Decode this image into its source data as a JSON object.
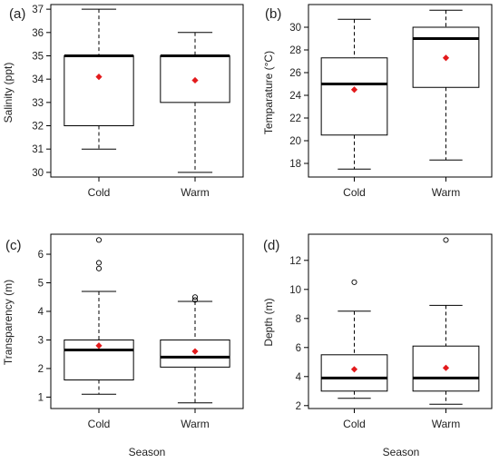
{
  "chart_data": [
    {
      "type": "boxplot",
      "panel": "(a)",
      "ylabel": "Salinity (ppt)",
      "xlabel": "",
      "ylim": [
        29.8,
        37.2
      ],
      "yticks": [
        30,
        31,
        32,
        33,
        34,
        35,
        36,
        37
      ],
      "categories": [
        "Cold",
        "Warm"
      ],
      "boxes": [
        {
          "category": "Cold",
          "whisker_low": 31,
          "q1": 32,
          "median": 35,
          "q3": 35,
          "whisker_high": 37,
          "mean": 34.1,
          "outliers": []
        },
        {
          "category": "Warm",
          "whisker_low": 30,
          "q1": 33,
          "median": 35,
          "q3": 35,
          "whisker_high": 36,
          "mean": 33.95,
          "outliers": []
        }
      ]
    },
    {
      "type": "boxplot",
      "panel": "(b)",
      "ylabel": "Temparature (°C)",
      "xlabel": "",
      "ylim": [
        16.8,
        32.0
      ],
      "yticks": [
        18,
        20,
        22,
        24,
        26,
        28,
        30
      ],
      "categories": [
        "Cold",
        "Warm"
      ],
      "boxes": [
        {
          "category": "Cold",
          "whisker_low": 17.5,
          "q1": 20.5,
          "median": 25.0,
          "q3": 27.3,
          "whisker_high": 30.7,
          "mean": 24.5,
          "outliers": []
        },
        {
          "category": "Warm",
          "whisker_low": 18.3,
          "q1": 24.7,
          "median": 29.0,
          "q3": 30.0,
          "whisker_high": 31.5,
          "mean": 27.3,
          "outliers": []
        }
      ]
    },
    {
      "type": "boxplot",
      "panel": "(c)",
      "ylabel": "Transparency (m)",
      "xlabel": "Season",
      "ylim": [
        0.6,
        6.7
      ],
      "yticks": [
        1,
        2,
        3,
        4,
        5,
        6
      ],
      "categories": [
        "Cold",
        "Warm"
      ],
      "boxes": [
        {
          "category": "Cold",
          "whisker_low": 1.1,
          "q1": 1.6,
          "median": 2.65,
          "q3": 3.0,
          "whisker_high": 4.7,
          "mean": 2.8,
          "outliers": [
            5.5,
            5.7,
            6.5
          ]
        },
        {
          "category": "Warm",
          "whisker_low": 0.8,
          "q1": 2.05,
          "median": 2.4,
          "q3": 3.0,
          "whisker_high": 4.35,
          "mean": 2.6,
          "outliers": [
            4.4,
            4.5
          ]
        }
      ]
    },
    {
      "type": "boxplot",
      "panel": "(d)",
      "ylabel": "Depth (m)",
      "xlabel": "Season",
      "ylim": [
        1.8,
        13.8
      ],
      "yticks": [
        2,
        4,
        6,
        8,
        10,
        12
      ],
      "categories": [
        "Cold",
        "Warm"
      ],
      "boxes": [
        {
          "category": "Cold",
          "whisker_low": 2.5,
          "q1": 3.0,
          "median": 3.9,
          "q3": 5.5,
          "whisker_high": 8.5,
          "mean": 4.5,
          "outliers": [
            10.5
          ]
        },
        {
          "category": "Warm",
          "whisker_low": 2.1,
          "q1": 3.0,
          "median": 3.9,
          "q3": 6.1,
          "whisker_high": 8.9,
          "mean": 4.6,
          "outliers": [
            13.4
          ]
        }
      ]
    }
  ],
  "colors": {
    "mean_marker": "#e31a1c",
    "median": "#000000",
    "box_outline": "#000000"
  }
}
